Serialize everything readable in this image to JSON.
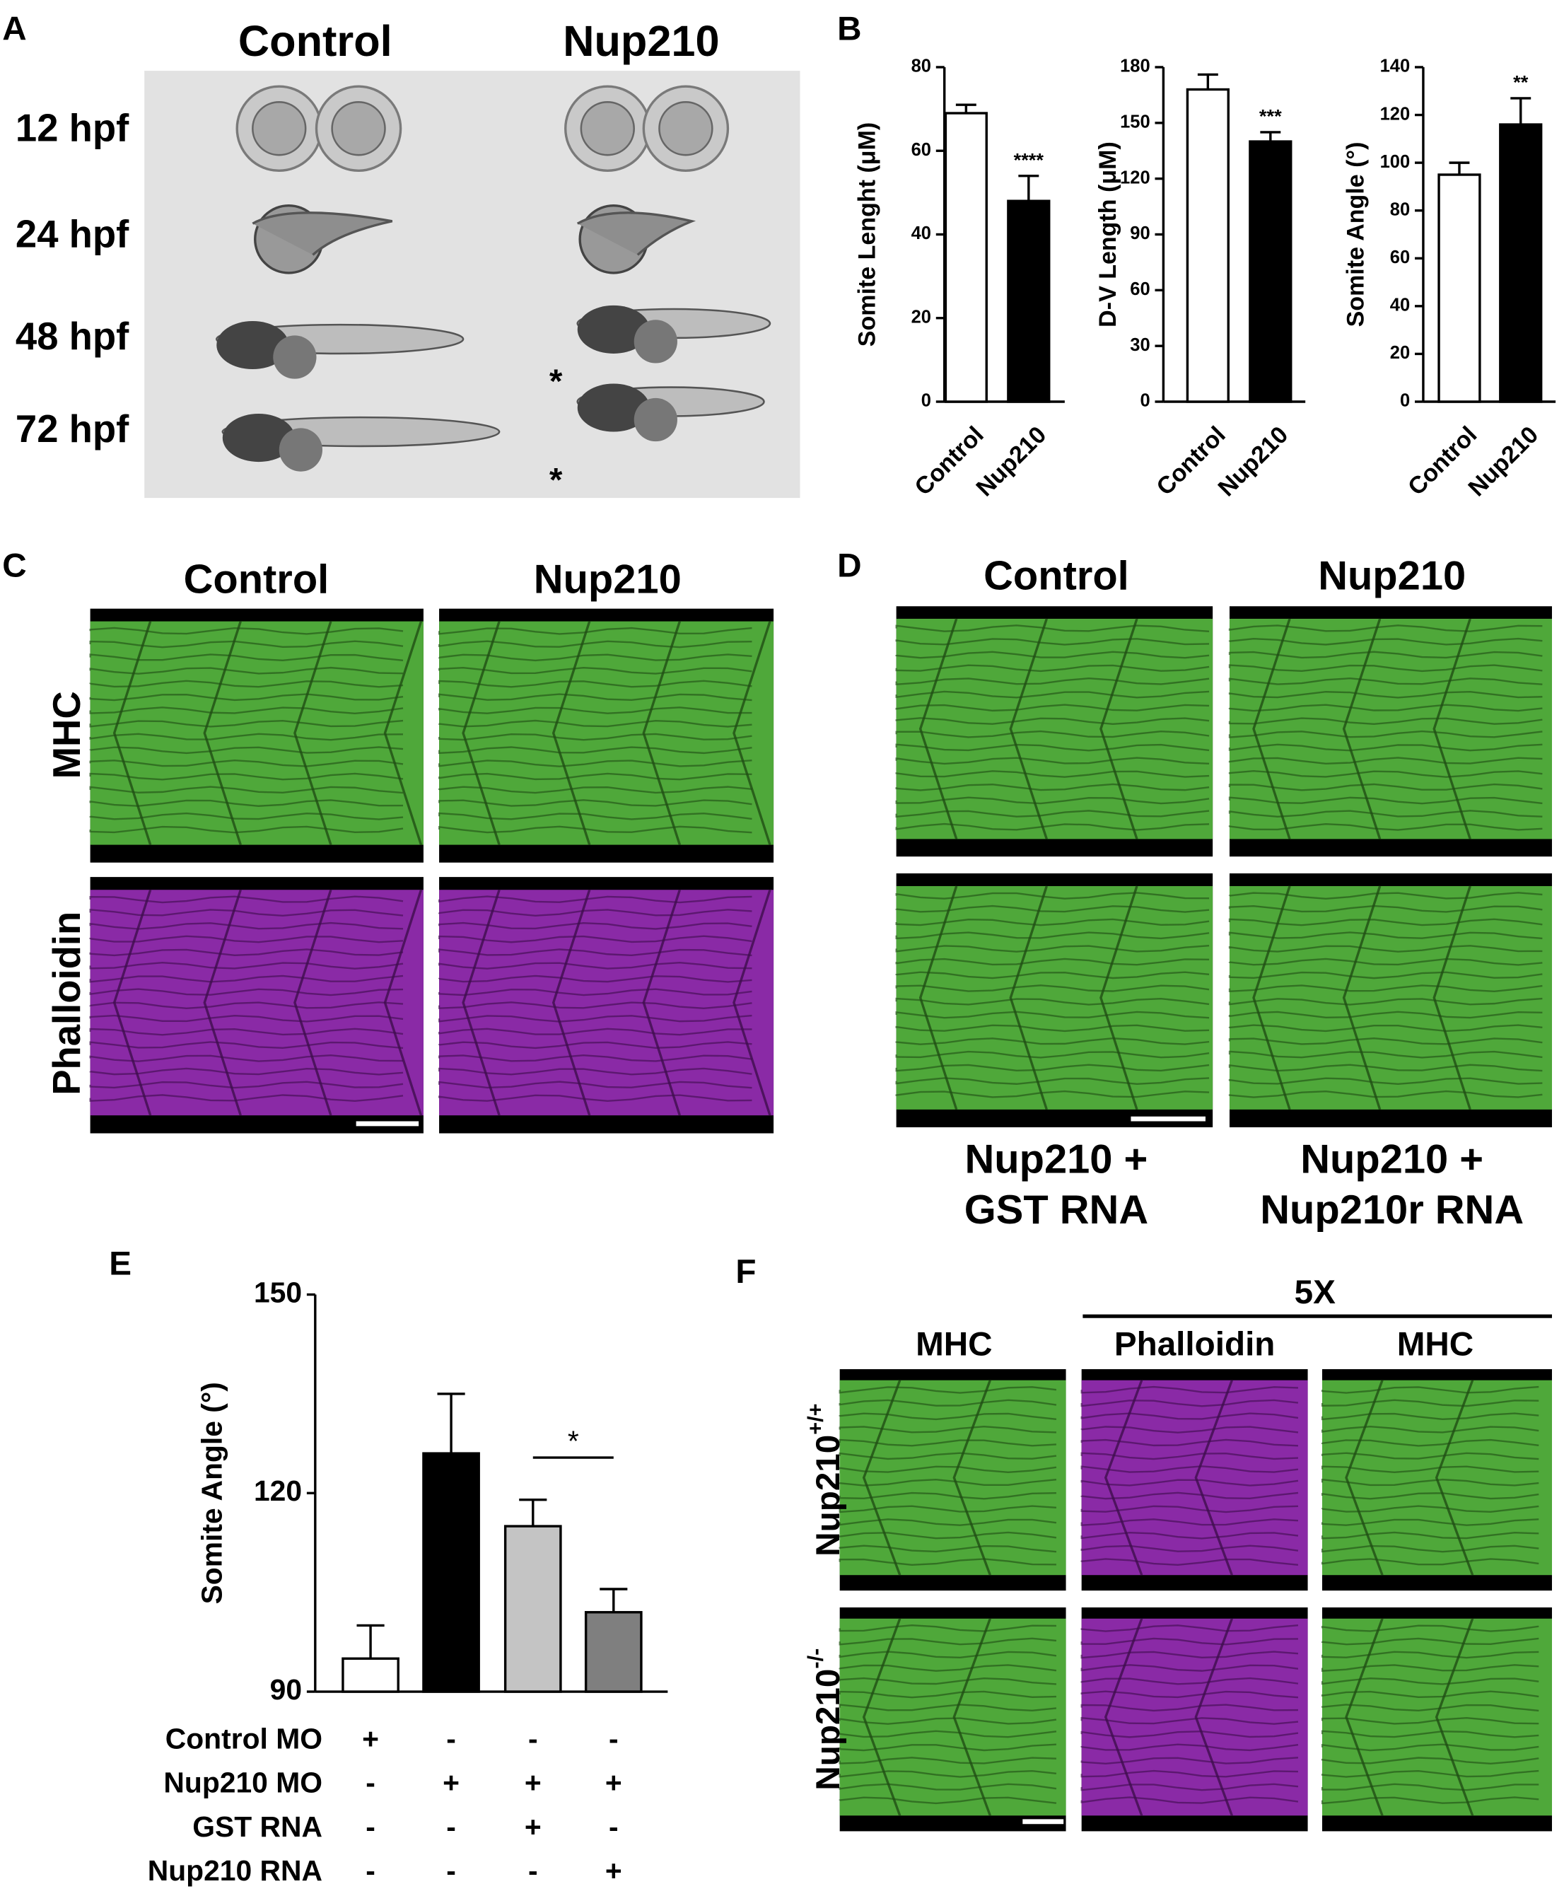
{
  "panels": {
    "A": {
      "label": "A",
      "columns": [
        "Control",
        "Nup210"
      ],
      "rows": [
        "12 hpf",
        "24 hpf",
        "48 hpf",
        "72 hpf"
      ],
      "markers": [
        "*",
        "*"
      ]
    },
    "B": {
      "label": "B"
    },
    "C": {
      "label": "C",
      "columns": [
        "Control",
        "Nup210"
      ],
      "rows": [
        "MHC",
        "Phalloidin"
      ]
    },
    "D": {
      "label": "D",
      "columns": [
        "Control",
        "Nup210"
      ],
      "captions": [
        [
          "Nup210 +",
          "GST RNA"
        ],
        [
          "Nup210 +",
          "Nup210r RNA"
        ]
      ]
    },
    "E": {
      "label": "E"
    },
    "F": {
      "label": "F",
      "group": "5X",
      "columns": [
        "MHC",
        "Phalloidin",
        "MHC"
      ],
      "rows": [
        {
          "name": "Nup210",
          "superscript": "+/+"
        },
        {
          "name": "Nup210",
          "superscript": "-/-"
        }
      ]
    }
  },
  "chart_data": [
    {
      "type": "bar",
      "y_label": "Somite Lenght (μM)",
      "categories": [
        "Control",
        "Nup210"
      ],
      "values": [
        69,
        48
      ],
      "errors": [
        2,
        6
      ],
      "colors": [
        "#ffffff",
        "#000000"
      ],
      "annotation": "****",
      "ylim": [
        0,
        80
      ],
      "yticks": [
        0,
        20,
        40,
        60,
        80
      ]
    },
    {
      "type": "bar",
      "y_label": "D-V Length (μM)",
      "categories": [
        "Control",
        "Nup210"
      ],
      "values": [
        168,
        140
      ],
      "errors": [
        8,
        5
      ],
      "colors": [
        "#ffffff",
        "#000000"
      ],
      "annotation": "***",
      "ylim": [
        0,
        180
      ],
      "yticks": [
        0,
        30,
        60,
        90,
        120,
        150,
        180
      ]
    },
    {
      "type": "bar",
      "y_label": "Somite Angle (°)",
      "categories": [
        "Control",
        "Nup210"
      ],
      "values": [
        95,
        116
      ],
      "errors": [
        5,
        11
      ],
      "colors": [
        "#ffffff",
        "#000000"
      ],
      "annotation": "**",
      "ylim": [
        0,
        140
      ],
      "yticks": [
        0,
        20,
        40,
        60,
        80,
        100,
        120,
        140
      ]
    },
    {
      "type": "bar",
      "y_label": "Somite Angle (°)",
      "values": [
        95,
        126,
        115,
        102
      ],
      "errors": [
        5,
        9,
        4,
        3.5
      ],
      "colors": [
        "#ffffff",
        "#000000",
        "#c4c4c4",
        "#7f7f7f"
      ],
      "annotation": "*",
      "ylim": [
        90,
        150
      ],
      "yticks": [
        90,
        120,
        150
      ],
      "conditions": [
        {
          "name": "Control MO",
          "marks": [
            "+",
            "-",
            "-",
            "-"
          ]
        },
        {
          "name": "Nup210 MO",
          "marks": [
            "-",
            "+",
            "+",
            "+"
          ]
        },
        {
          "name": "GST RNA",
          "marks": [
            "-",
            "-",
            "+",
            "-"
          ]
        },
        {
          "name": "Nup210 RNA",
          "marks": [
            "-",
            "-",
            "-",
            "+"
          ]
        }
      ]
    }
  ]
}
